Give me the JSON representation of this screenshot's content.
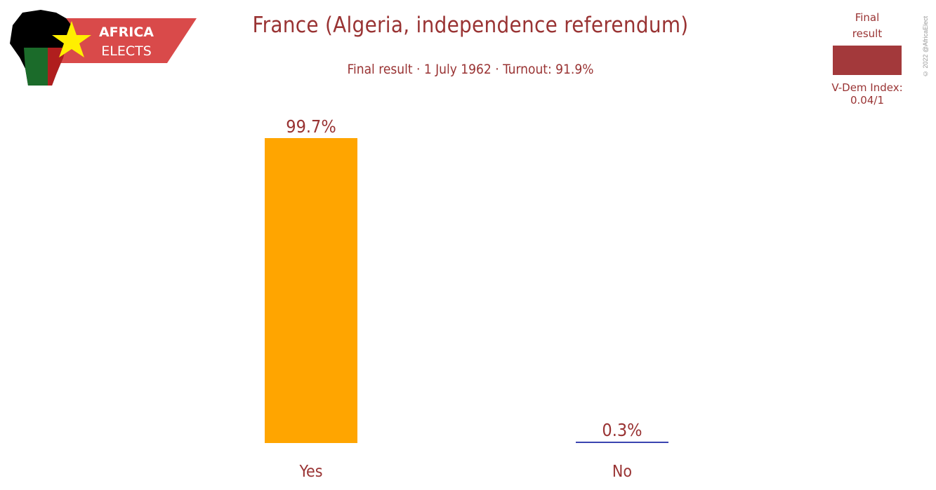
{
  "logo": {
    "line1": "AFRICA",
    "line2": "ELECTS"
  },
  "copyright": "© 2022 @AfricaElect",
  "legend": {
    "label_line1": "Final",
    "label_line2": "result",
    "swatch_color": "#a3393b"
  },
  "vdem": "V-Dem Index: 0.04/1",
  "chart_data": {
    "type": "bar",
    "title": "France (Algeria, independence referendum)",
    "subtitle": "Final result · 1 July 1962 · Turnout: 91.9%",
    "categories": [
      "Yes",
      "No"
    ],
    "values": [
      99.7,
      0.3
    ],
    "value_labels": [
      "99.7%",
      "0.3%"
    ],
    "colors": [
      "#ffa500",
      "#3a44b0"
    ],
    "ylim": [
      0,
      100
    ],
    "grid": false,
    "legend_position": "top-right"
  }
}
